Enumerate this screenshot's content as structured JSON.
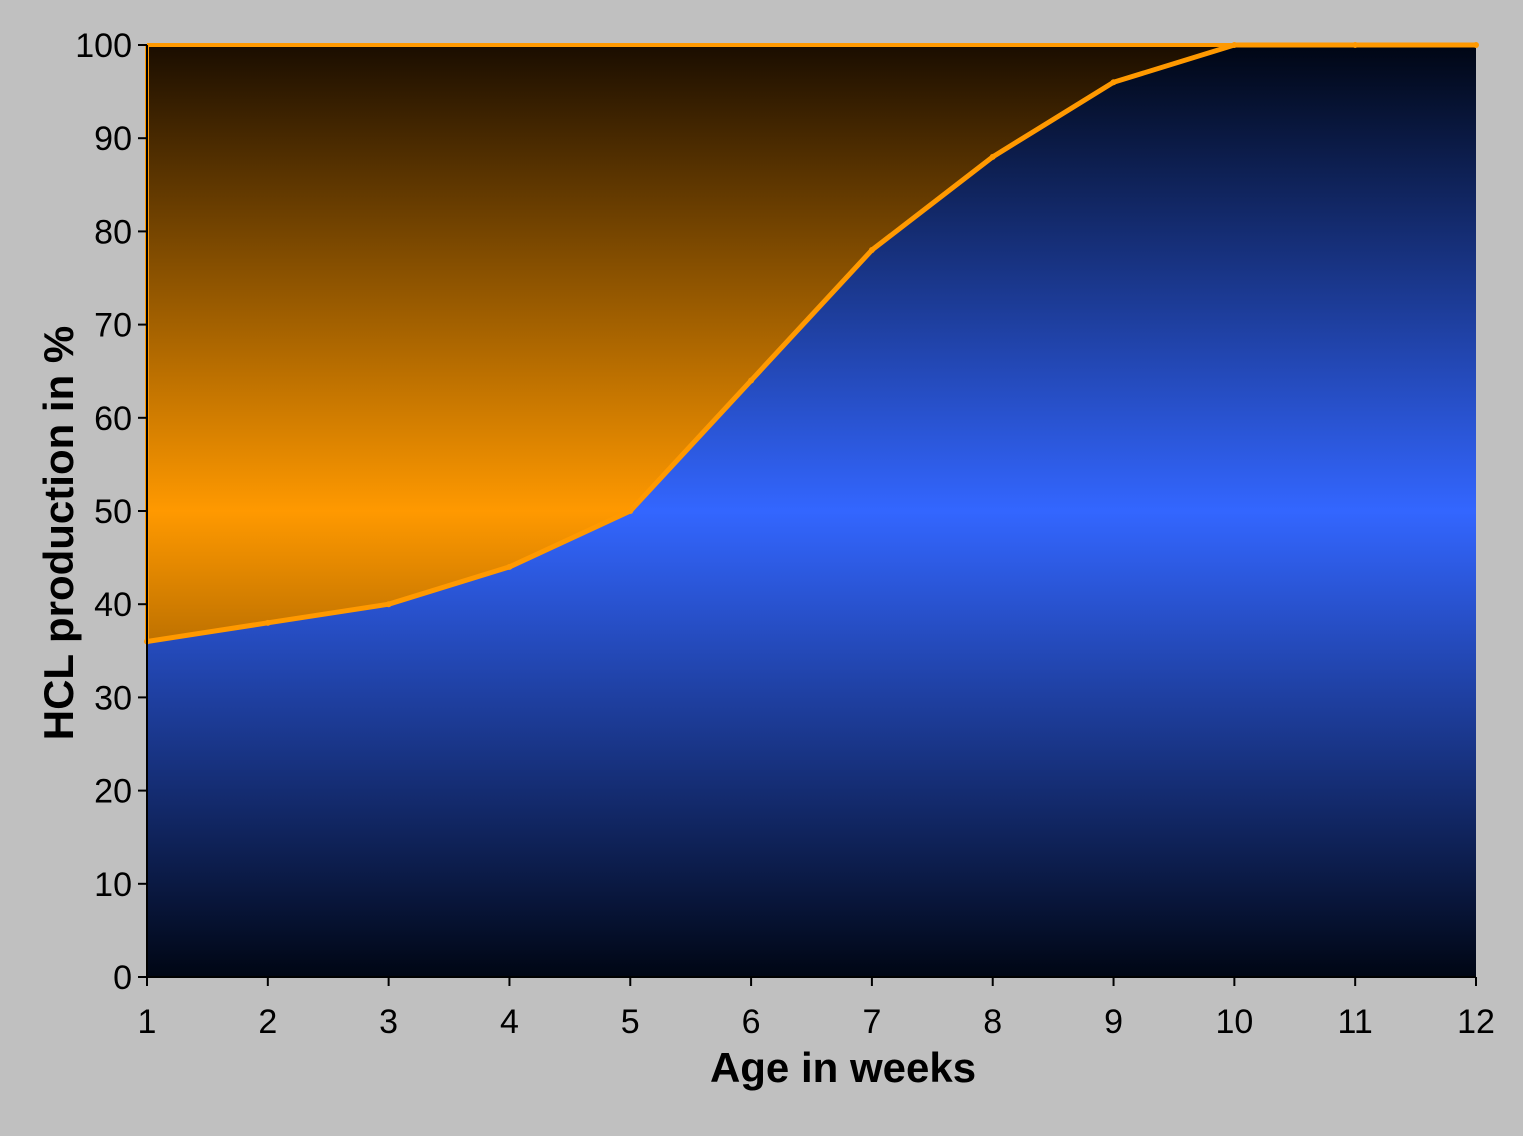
{
  "colors": {
    "page_background": "#c0c0c0",
    "series_line": "#ff9900",
    "upper_fill_mid": "#ff9900",
    "upper_fill_edge": "#1a0d00",
    "lower_fill_mid": "#3366ff",
    "lower_fill_edge": "#000614",
    "axis_line": "#000000"
  },
  "chart_data": {
    "type": "area",
    "title": "",
    "xlabel": "Age in weeks",
    "ylabel": "HCL production in %",
    "x": [
      1,
      2,
      3,
      4,
      5,
      6,
      7,
      8,
      9,
      10,
      11,
      12
    ],
    "x_tick_labels": [
      "1",
      "2",
      "3",
      "4",
      "5",
      "6",
      "7",
      "8",
      "9",
      "10",
      "11",
      "12"
    ],
    "y_tick_labels": [
      "0",
      "10",
      "20",
      "30",
      "40",
      "50",
      "60",
      "70",
      "80",
      "90",
      "100"
    ],
    "xlim": [
      1,
      12
    ],
    "ylim": [
      0,
      100
    ],
    "y_ticks": [
      0,
      10,
      20,
      30,
      40,
      50,
      60,
      70,
      80,
      90,
      100
    ],
    "grid": false,
    "legend": "none",
    "series": [
      {
        "values": [
          36,
          38,
          40,
          44,
          50,
          64,
          78,
          88,
          96,
          100,
          100,
          100
        ]
      }
    ]
  }
}
